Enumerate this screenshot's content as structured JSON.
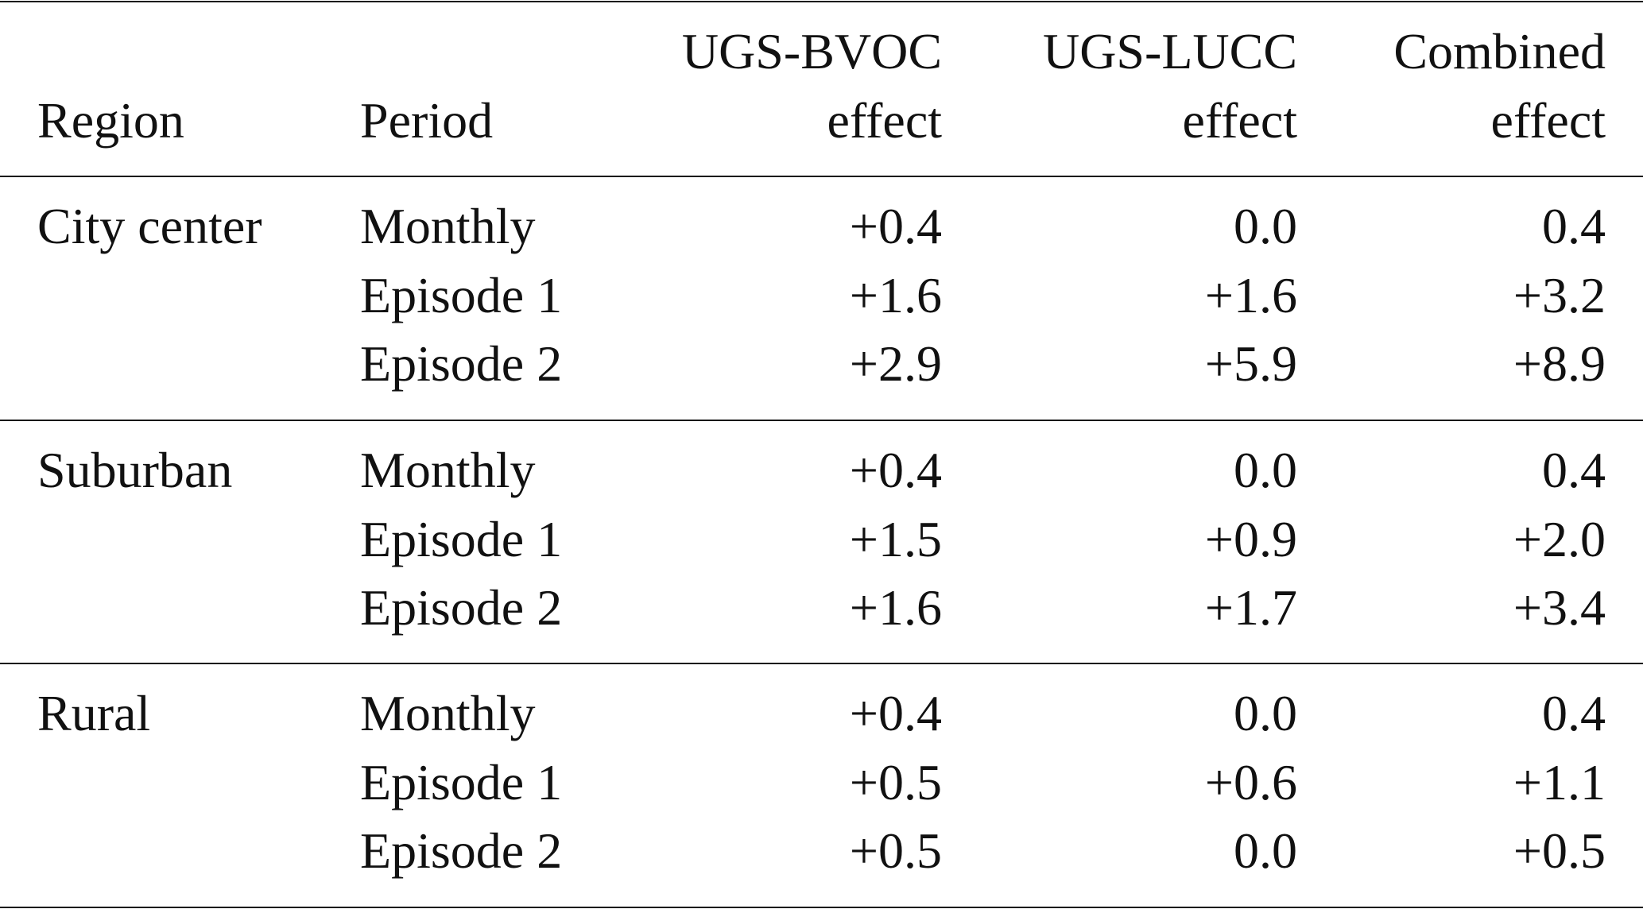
{
  "table": {
    "headers": {
      "region": "Region",
      "period": "Period",
      "bvoc": [
        "UGS-BVOC",
        "effect"
      ],
      "lucc": [
        "UGS-LUCC",
        "effect"
      ],
      "combined": [
        "Combined",
        "effect"
      ]
    },
    "groups": [
      {
        "region": "City center",
        "rows": [
          {
            "period": "Monthly",
            "bvoc": "+0.4",
            "lucc": "0.0",
            "combined": "0.4"
          },
          {
            "period": "Episode 1",
            "bvoc": "+1.6",
            "lucc": "+1.6",
            "combined": "+3.2"
          },
          {
            "period": "Episode 2",
            "bvoc": "+2.9",
            "lucc": "+5.9",
            "combined": "+8.9"
          }
        ]
      },
      {
        "region": "Suburban",
        "rows": [
          {
            "period": "Monthly",
            "bvoc": "+0.4",
            "lucc": "0.0",
            "combined": "0.4"
          },
          {
            "period": "Episode 1",
            "bvoc": "+1.5",
            "lucc": "+0.9",
            "combined": "+2.0"
          },
          {
            "period": "Episode 2",
            "bvoc": "+1.6",
            "lucc": "+1.7",
            "combined": "+3.4"
          }
        ]
      },
      {
        "region": "Rural",
        "rows": [
          {
            "period": "Monthly",
            "bvoc": "+0.4",
            "lucc": "0.0",
            "combined": "0.4"
          },
          {
            "period": "Episode 1",
            "bvoc": "+0.5",
            "lucc": "+0.6",
            "combined": "+1.1"
          },
          {
            "period": "Episode 2",
            "bvoc": "+0.5",
            "lucc": "0.0",
            "combined": "+0.5"
          }
        ]
      }
    ]
  }
}
